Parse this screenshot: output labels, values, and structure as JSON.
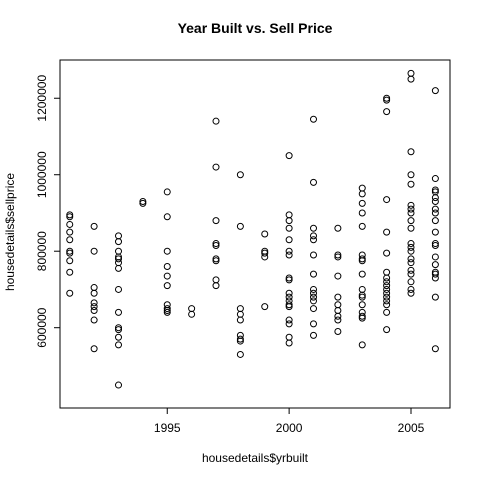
{
  "chart_data": {
    "type": "scatter",
    "title": "Year Built vs. Sell Price",
    "xlabel": "housedetails$yrbuilt",
    "ylabel": "housedetails$sellprice",
    "xlim": [
      1990.6,
      2006.6
    ],
    "ylim": [
      390000,
      1300000
    ],
    "xticks": [
      1995,
      2000,
      2005
    ],
    "yticks": [
      600000,
      800000,
      1000000,
      1200000
    ],
    "xtick_labels": [
      "1995",
      "2000",
      "2005"
    ],
    "ytick_labels": [
      "600000",
      "800000",
      "1000000",
      "1200000"
    ],
    "grid": false,
    "marker": "open-circle",
    "points": [
      [
        1991,
        895000
      ],
      [
        1991,
        890000
      ],
      [
        1991,
        870000
      ],
      [
        1991,
        850000
      ],
      [
        1991,
        830000
      ],
      [
        1991,
        800000
      ],
      [
        1991,
        795000
      ],
      [
        1991,
        775000
      ],
      [
        1991,
        745000
      ],
      [
        1991,
        690000
      ],
      [
        1992,
        865000
      ],
      [
        1992,
        800000
      ],
      [
        1992,
        705000
      ],
      [
        1992,
        690000
      ],
      [
        1992,
        665000
      ],
      [
        1992,
        655000
      ],
      [
        1992,
        645000
      ],
      [
        1992,
        620000
      ],
      [
        1992,
        545000
      ],
      [
        1993,
        840000
      ],
      [
        1993,
        825000
      ],
      [
        1993,
        800000
      ],
      [
        1993,
        785000
      ],
      [
        1993,
        780000
      ],
      [
        1993,
        770000
      ],
      [
        1993,
        755000
      ],
      [
        1993,
        700000
      ],
      [
        1993,
        640000
      ],
      [
        1993,
        600000
      ],
      [
        1993,
        595000
      ],
      [
        1993,
        575000
      ],
      [
        1993,
        555000
      ],
      [
        1993,
        450000
      ],
      [
        1994,
        930000
      ],
      [
        1994,
        925000
      ],
      [
        1995,
        955000
      ],
      [
        1995,
        890000
      ],
      [
        1995,
        800000
      ],
      [
        1995,
        760000
      ],
      [
        1995,
        735000
      ],
      [
        1995,
        710000
      ],
      [
        1995,
        660000
      ],
      [
        1995,
        650000
      ],
      [
        1995,
        645000
      ],
      [
        1995,
        640000
      ],
      [
        1996,
        650000
      ],
      [
        1996,
        635000
      ],
      [
        1997,
        1140000
      ],
      [
        1997,
        1020000
      ],
      [
        1997,
        880000
      ],
      [
        1997,
        820000
      ],
      [
        1997,
        815000
      ],
      [
        1997,
        780000
      ],
      [
        1997,
        775000
      ],
      [
        1997,
        725000
      ],
      [
        1997,
        710000
      ],
      [
        1998,
        1000000
      ],
      [
        1998,
        865000
      ],
      [
        1998,
        650000
      ],
      [
        1998,
        635000
      ],
      [
        1998,
        620000
      ],
      [
        1998,
        580000
      ],
      [
        1998,
        570000
      ],
      [
        1998,
        565000
      ],
      [
        1998,
        530000
      ],
      [
        1999,
        845000
      ],
      [
        1999,
        800000
      ],
      [
        1999,
        795000
      ],
      [
        1999,
        785000
      ],
      [
        1999,
        655000
      ],
      [
        2000,
        1050000
      ],
      [
        2000,
        895000
      ],
      [
        2000,
        880000
      ],
      [
        2000,
        860000
      ],
      [
        2000,
        830000
      ],
      [
        2000,
        800000
      ],
      [
        2000,
        790000
      ],
      [
        2000,
        730000
      ],
      [
        2000,
        725000
      ],
      [
        2000,
        690000
      ],
      [
        2000,
        680000
      ],
      [
        2000,
        670000
      ],
      [
        2000,
        660000
      ],
      [
        2000,
        655000
      ],
      [
        2000,
        620000
      ],
      [
        2000,
        610000
      ],
      [
        2000,
        575000
      ],
      [
        2000,
        560000
      ],
      [
        2001,
        1145000
      ],
      [
        2001,
        980000
      ],
      [
        2001,
        860000
      ],
      [
        2001,
        840000
      ],
      [
        2001,
        830000
      ],
      [
        2001,
        790000
      ],
      [
        2001,
        740000
      ],
      [
        2001,
        700000
      ],
      [
        2001,
        690000
      ],
      [
        2001,
        680000
      ],
      [
        2001,
        670000
      ],
      [
        2001,
        650000
      ],
      [
        2001,
        610000
      ],
      [
        2001,
        580000
      ],
      [
        2002,
        860000
      ],
      [
        2002,
        790000
      ],
      [
        2002,
        785000
      ],
      [
        2002,
        735000
      ],
      [
        2002,
        680000
      ],
      [
        2002,
        660000
      ],
      [
        2002,
        645000
      ],
      [
        2002,
        630000
      ],
      [
        2002,
        620000
      ],
      [
        2002,
        590000
      ],
      [
        2003,
        965000
      ],
      [
        2003,
        950000
      ],
      [
        2003,
        925000
      ],
      [
        2003,
        900000
      ],
      [
        2003,
        865000
      ],
      [
        2003,
        790000
      ],
      [
        2003,
        780000
      ],
      [
        2003,
        775000
      ],
      [
        2003,
        740000
      ],
      [
        2003,
        700000
      ],
      [
        2003,
        685000
      ],
      [
        2003,
        680000
      ],
      [
        2003,
        660000
      ],
      [
        2003,
        640000
      ],
      [
        2003,
        630000
      ],
      [
        2003,
        625000
      ],
      [
        2003,
        555000
      ],
      [
        2004,
        1200000
      ],
      [
        2004,
        1195000
      ],
      [
        2004,
        1165000
      ],
      [
        2004,
        935000
      ],
      [
        2004,
        850000
      ],
      [
        2004,
        795000
      ],
      [
        2004,
        745000
      ],
      [
        2004,
        730000
      ],
      [
        2004,
        720000
      ],
      [
        2004,
        710000
      ],
      [
        2004,
        700000
      ],
      [
        2004,
        690000
      ],
      [
        2004,
        680000
      ],
      [
        2004,
        670000
      ],
      [
        2004,
        660000
      ],
      [
        2004,
        640000
      ],
      [
        2004,
        595000
      ],
      [
        2005,
        1265000
      ],
      [
        2005,
        1250000
      ],
      [
        2005,
        1060000
      ],
      [
        2005,
        1000000
      ],
      [
        2005,
        975000
      ],
      [
        2005,
        920000
      ],
      [
        2005,
        910000
      ],
      [
        2005,
        900000
      ],
      [
        2005,
        880000
      ],
      [
        2005,
        860000
      ],
      [
        2005,
        820000
      ],
      [
        2005,
        810000
      ],
      [
        2005,
        800000
      ],
      [
        2005,
        780000
      ],
      [
        2005,
        770000
      ],
      [
        2005,
        750000
      ],
      [
        2005,
        740000
      ],
      [
        2005,
        720000
      ],
      [
        2005,
        700000
      ],
      [
        2005,
        690000
      ],
      [
        2006,
        1220000
      ],
      [
        2006,
        990000
      ],
      [
        2006,
        960000
      ],
      [
        2006,
        955000
      ],
      [
        2006,
        940000
      ],
      [
        2006,
        930000
      ],
      [
        2006,
        910000
      ],
      [
        2006,
        900000
      ],
      [
        2006,
        880000
      ],
      [
        2006,
        850000
      ],
      [
        2006,
        820000
      ],
      [
        2006,
        815000
      ],
      [
        2006,
        785000
      ],
      [
        2006,
        765000
      ],
      [
        2006,
        745000
      ],
      [
        2006,
        740000
      ],
      [
        2006,
        730000
      ],
      [
        2006,
        680000
      ],
      [
        2006,
        545000
      ]
    ]
  }
}
